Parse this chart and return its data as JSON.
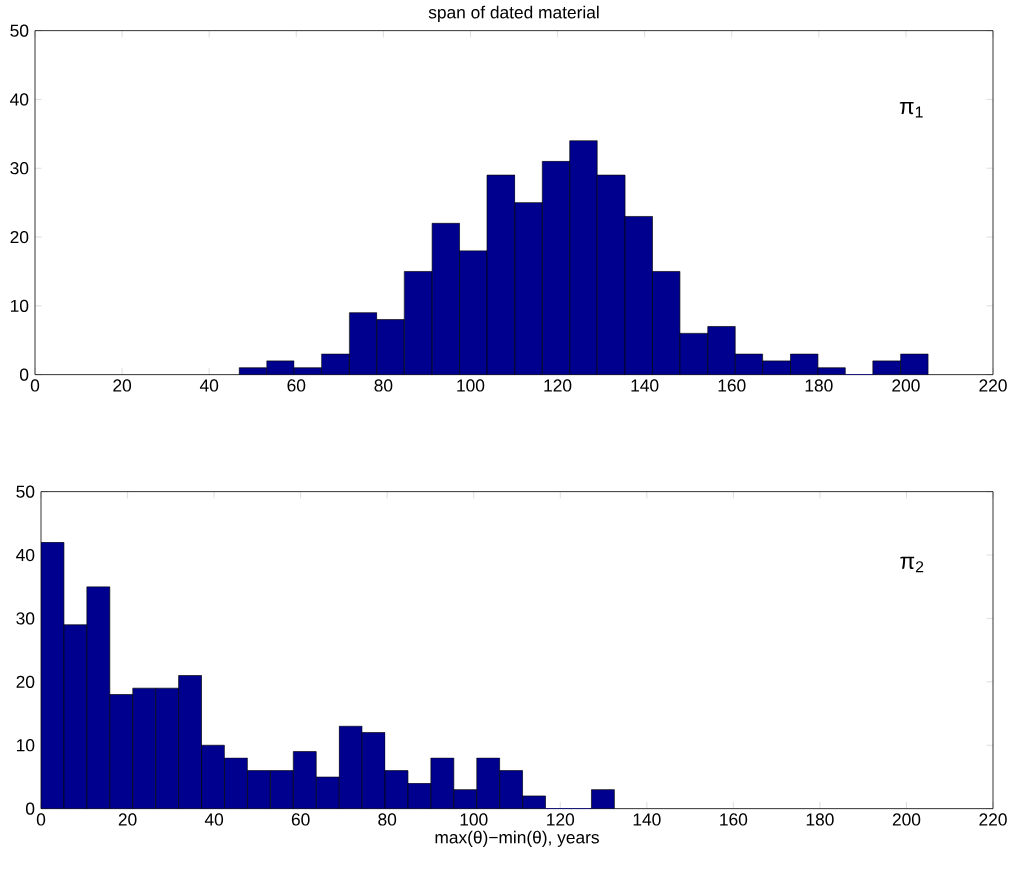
{
  "chart_data": [
    {
      "type": "histogram",
      "title": "span of dated material",
      "color": "#00008f",
      "bins": [
        46.9,
        53.2,
        59.5,
        65.8,
        72.2,
        78.5,
        84.8,
        91.2,
        97.5,
        103.8,
        110.2,
        116.5,
        122.8,
        129.1,
        135.5,
        141.8,
        148.1,
        154.5,
        160.8,
        167.1,
        173.5,
        179.8,
        186.1,
        192.4,
        198.8,
        205.1
      ],
      "values": [
        1,
        2,
        1,
        3,
        9,
        8,
        15,
        22,
        18,
        29,
        25,
        31,
        34,
        29,
        23,
        15,
        6,
        7,
        3,
        2,
        3,
        1,
        0,
        2,
        3
      ],
      "xlim": [
        0,
        220
      ],
      "ylim": [
        0,
        50
      ],
      "xticks": [
        0,
        20,
        40,
        60,
        80,
        100,
        120,
        140,
        160,
        180,
        200,
        220
      ],
      "yticks": [
        0,
        10,
        20,
        30,
        40,
        50
      ],
      "annotations": [
        "π$_{1}$"
      ]
    },
    {
      "type": "histogram",
      "xlabel": "max(θ)−min(θ), years",
      "color": "#00008f",
      "bins": [
        0,
        5.3,
        10.6,
        15.9,
        21.2,
        26.5,
        31.8,
        37.1,
        42.4,
        47.7,
        53,
        58.3,
        63.6,
        68.9,
        74.2,
        79.5,
        84.8,
        90.1,
        95.4,
        100.7,
        106,
        111.3,
        116.6,
        121.9,
        127.2,
        132.5
      ],
      "values": [
        42,
        29,
        35,
        18,
        19,
        19,
        21,
        10,
        8,
        6,
        6,
        9,
        5,
        13,
        12,
        6,
        4,
        8,
        3,
        8,
        6,
        2,
        0,
        0,
        3
      ],
      "xlim": [
        0,
        220
      ],
      "ylim": [
        0,
        50
      ],
      "xticks": [
        0,
        20,
        40,
        60,
        80,
        100,
        120,
        140,
        160,
        180,
        200,
        220
      ],
      "yticks": [
        0,
        10,
        20,
        30,
        40,
        50
      ],
      "annotations": [
        "π$_{2}$"
      ]
    }
  ]
}
